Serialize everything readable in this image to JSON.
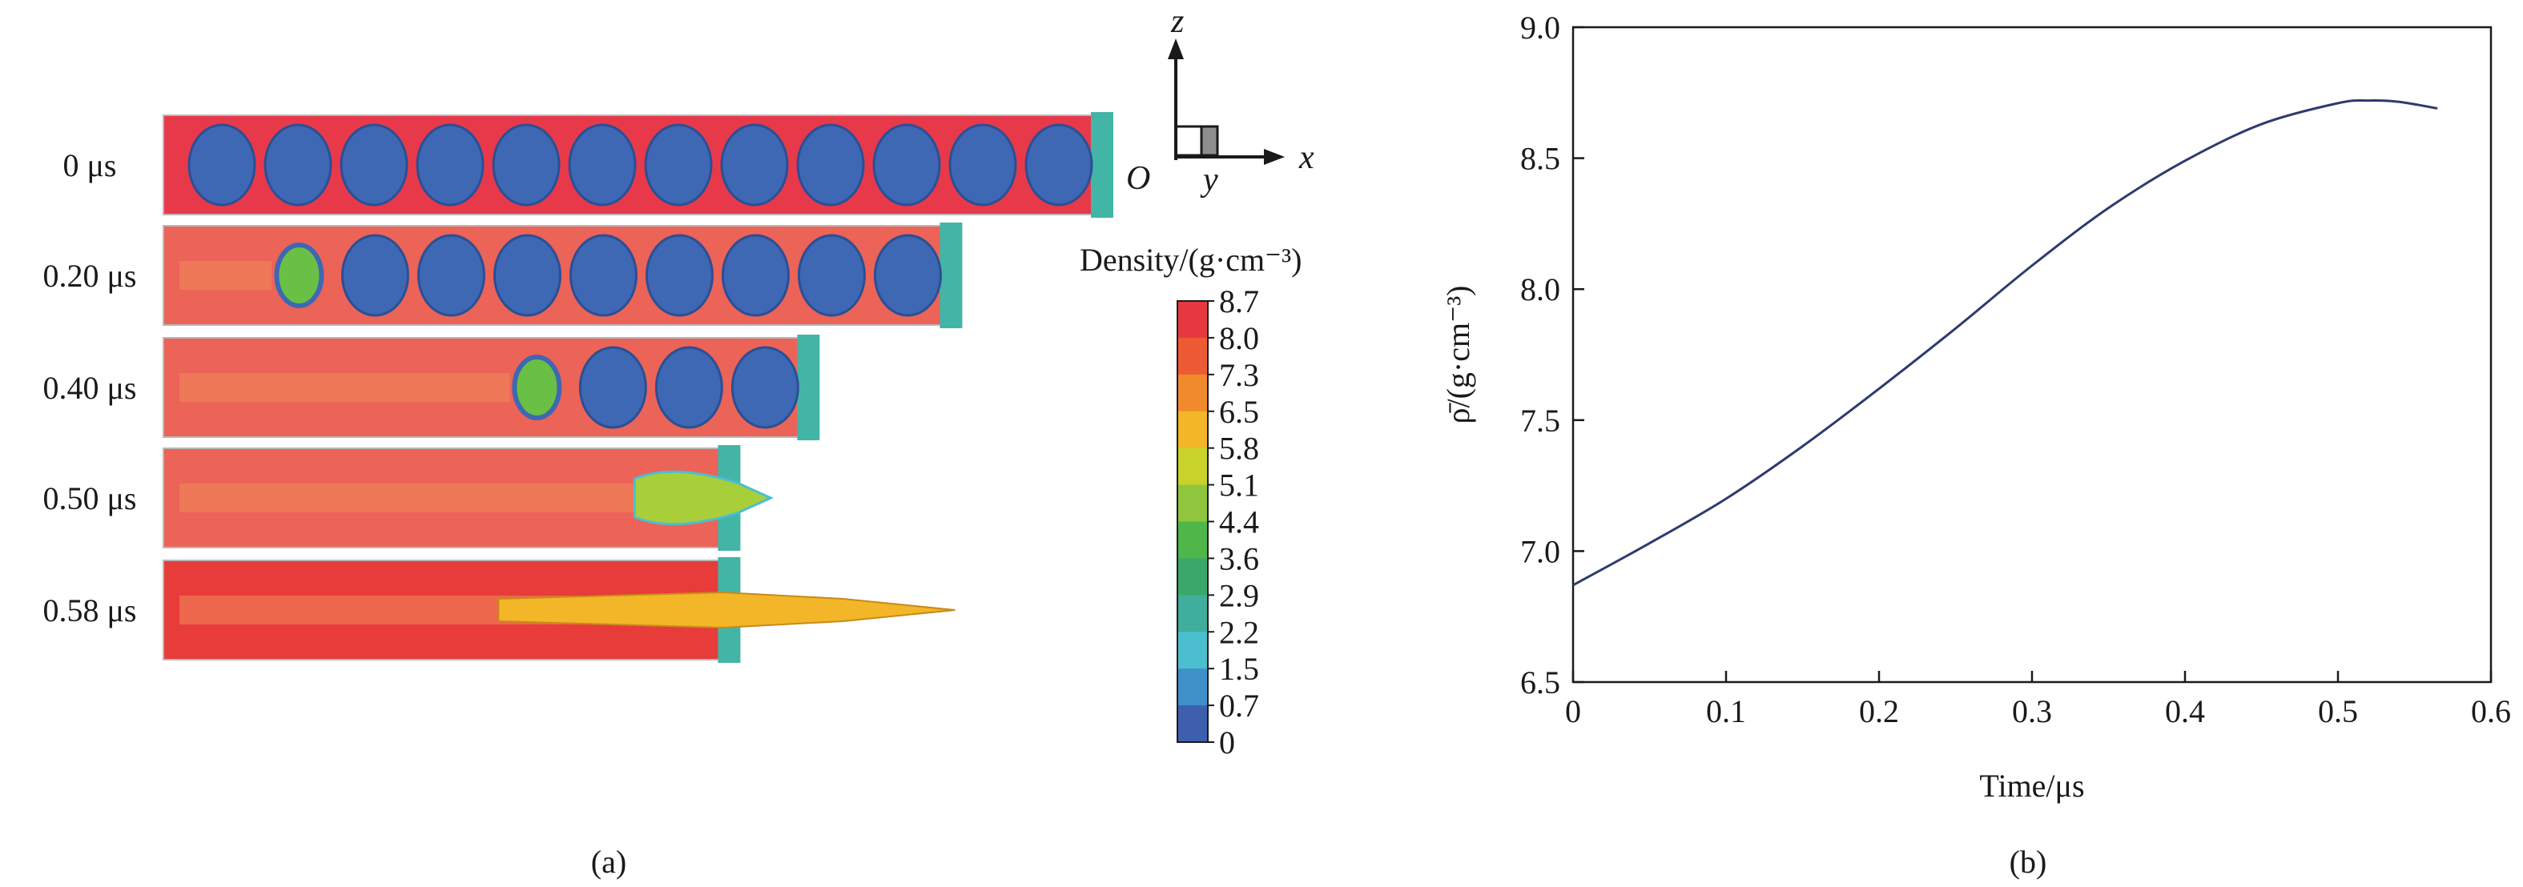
{
  "panel_a": {
    "caption": "(a)",
    "frames": [
      {
        "time": "0 μs",
        "front": 1.0,
        "remaining_voids": 12
      },
      {
        "time": "0.20 μs",
        "front": 0.838,
        "remaining_voids": 8
      },
      {
        "time": "0.40 μs",
        "front": 0.685,
        "remaining_voids": 3
      },
      {
        "time": "0.50 μs",
        "front": 0.6,
        "remaining_voids": 0
      },
      {
        "time": "0.58 μs",
        "front": 0.6,
        "remaining_voids": 0
      }
    ],
    "axes_triad": {
      "z": "z",
      "x": "x",
      "y": "y",
      "origin": "O"
    },
    "colorbar": {
      "title": "Density/(g·cm⁻³)",
      "ticks": [
        "8.7",
        "8.0",
        "7.3",
        "6.5",
        "5.8",
        "5.1",
        "4.4",
        "3.6",
        "2.9",
        "2.2",
        "1.5",
        "0.7",
        "0"
      ],
      "colors": [
        "#e8383f",
        "#ec5b34",
        "#f08a2c",
        "#f2b628",
        "#c8d22a",
        "#8fc63e",
        "#4fb64a",
        "#3aa86a",
        "#3fae9c",
        "#4bbfcf",
        "#3f8fc9",
        "#3d5fae"
      ]
    }
  },
  "chart_data": {
    "type": "line",
    "title": "",
    "xlabel": "Time/μs",
    "ylabel": "ρ̄/(g·cm⁻³)",
    "xlim": [
      0,
      0.6
    ],
    "ylim": [
      6.5,
      9.0
    ],
    "x_ticks": [
      "0",
      "0.1",
      "0.2",
      "0.3",
      "0.4",
      "0.5",
      "0.6"
    ],
    "y_ticks": [
      "6.5",
      "7.0",
      "7.5",
      "8.0",
      "8.5",
      "9.0"
    ],
    "caption": "(b)",
    "series": [
      {
        "color": "#2e3a6e",
        "x": [
          0,
          0.05,
          0.1,
          0.15,
          0.2,
          0.25,
          0.3,
          0.35,
          0.4,
          0.45,
          0.5,
          0.52,
          0.54,
          0.565
        ],
        "y": [
          6.87,
          7.03,
          7.2,
          7.4,
          7.62,
          7.85,
          8.09,
          8.31,
          8.49,
          8.63,
          8.71,
          8.72,
          8.715,
          8.69
        ]
      }
    ]
  }
}
